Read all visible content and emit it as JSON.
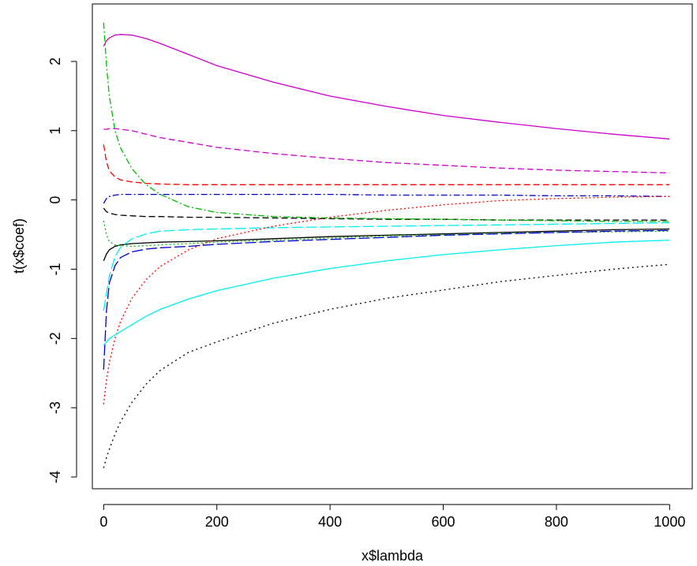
{
  "chart_data": {
    "type": "line",
    "xlabel": "x$lambda",
    "ylabel": "t(x$coef)",
    "xlim": [
      -20,
      1040
    ],
    "ylim": [
      -4.17,
      2.83
    ],
    "xticks": [
      0,
      200,
      400,
      600,
      800,
      1000
    ],
    "yticks": [
      -4,
      -3,
      -2,
      -1,
      0,
      1,
      2
    ],
    "xtick_labels": [
      "0",
      "200",
      "400",
      "600",
      "800",
      "1000"
    ],
    "ytick_labels": [
      "-4",
      "-3",
      "-2",
      "-1",
      "0",
      "1",
      "2"
    ],
    "grid": false,
    "legend": "none",
    "x": [
      0,
      5,
      10,
      20,
      30,
      50,
      75,
      100,
      150,
      200,
      300,
      400,
      500,
      600,
      700,
      800,
      900,
      1000
    ],
    "series": [
      {
        "color": "#000000",
        "dash": "none",
        "values": [
          -0.88,
          -0.78,
          -0.72,
          -0.67,
          -0.65,
          -0.63,
          -0.62,
          -0.61,
          -0.6,
          -0.59,
          -0.56,
          -0.53,
          -0.51,
          -0.49,
          -0.47,
          -0.45,
          -0.43,
          -0.42
        ]
      },
      {
        "color": "#ff0000",
        "dash": "8,4",
        "values": [
          0.8,
          0.55,
          0.42,
          0.33,
          0.29,
          0.26,
          0.24,
          0.23,
          0.22,
          0.22,
          0.22,
          0.22,
          0.22,
          0.22,
          0.22,
          0.22,
          0.22,
          0.22
        ]
      },
      {
        "color": "#00bb00",
        "dash": "2,3",
        "values": [
          -0.3,
          -0.5,
          -0.6,
          -0.65,
          -0.66,
          -0.67,
          -0.66,
          -0.65,
          -0.63,
          -0.61,
          -0.58,
          -0.55,
          -0.52,
          -0.5,
          -0.48,
          -0.47,
          -0.46,
          -0.45
        ]
      },
      {
        "color": "#0000cc",
        "dash": "8,3,2,3",
        "values": [
          -0.05,
          0.02,
          0.05,
          0.07,
          0.08,
          0.08,
          0.08,
          0.08,
          0.08,
          0.08,
          0.08,
          0.08,
          0.07,
          0.07,
          0.07,
          0.06,
          0.06,
          0.05
        ]
      },
      {
        "color": "#00eeee",
        "dash": "14,4",
        "values": [
          -1.6,
          -1.35,
          -1.1,
          -0.82,
          -0.68,
          -0.56,
          -0.49,
          -0.45,
          -0.43,
          -0.42,
          -0.4,
          -0.39,
          -0.38,
          -0.37,
          -0.36,
          -0.35,
          -0.34,
          -0.33
        ]
      },
      {
        "color": "#cc00cc",
        "dash": "none",
        "values": [
          2.22,
          2.3,
          2.34,
          2.38,
          2.39,
          2.38,
          2.33,
          2.26,
          2.1,
          1.94,
          1.7,
          1.5,
          1.35,
          1.22,
          1.12,
          1.03,
          0.95,
          0.88
        ]
      },
      {
        "color": "#000000",
        "dash": "2,4",
        "values": [
          -3.87,
          -3.72,
          -3.6,
          -3.38,
          -3.2,
          -2.92,
          -2.66,
          -2.46,
          -2.2,
          -2.05,
          -1.78,
          -1.58,
          -1.42,
          -1.3,
          -1.18,
          -1.09,
          -1.0,
          -0.93
        ]
      },
      {
        "color": "#000000",
        "dash": "8,4",
        "values": [
          -0.12,
          -0.17,
          -0.19,
          -0.21,
          -0.22,
          -0.23,
          -0.24,
          -0.24,
          -0.25,
          -0.25,
          -0.26,
          -0.27,
          -0.28,
          -0.28,
          -0.29,
          -0.29,
          -0.29,
          -0.29
        ]
      },
      {
        "color": "#ff0000",
        "dash": "2,3",
        "values": [
          -2.95,
          -2.6,
          -2.35,
          -2.0,
          -1.75,
          -1.42,
          -1.15,
          -0.96,
          -0.72,
          -0.56,
          -0.38,
          -0.25,
          -0.15,
          -0.07,
          -0.01,
          0.02,
          0.04,
          0.05
        ]
      },
      {
        "color": "#00bb00",
        "dash": "8,3,2,3",
        "values": [
          2.56,
          1.95,
          1.5,
          1.0,
          0.75,
          0.45,
          0.22,
          0.08,
          -0.1,
          -0.18,
          -0.24,
          -0.26,
          -0.27,
          -0.28,
          -0.29,
          -0.3,
          -0.31,
          -0.31
        ]
      },
      {
        "color": "#0000cc",
        "dash": "14,4",
        "values": [
          -2.45,
          -1.6,
          -1.2,
          -0.95,
          -0.83,
          -0.75,
          -0.71,
          -0.69,
          -0.67,
          -0.64,
          -0.6,
          -0.57,
          -0.54,
          -0.51,
          -0.49,
          -0.47,
          -0.45,
          -0.44
        ]
      },
      {
        "color": "#00eeee",
        "dash": "none",
        "values": [
          -2.1,
          -2.05,
          -2.0,
          -1.95,
          -1.9,
          -1.8,
          -1.68,
          -1.58,
          -1.43,
          -1.31,
          -1.13,
          -0.99,
          -0.88,
          -0.79,
          -0.72,
          -0.66,
          -0.61,
          -0.58
        ]
      },
      {
        "color": "#cc00cc",
        "dash": "8,4",
        "values": [
          1.02,
          1.02,
          1.03,
          1.03,
          1.02,
          1.0,
          0.95,
          0.9,
          0.83,
          0.76,
          0.67,
          0.6,
          0.54,
          0.5,
          0.46,
          0.43,
          0.41,
          0.39
        ]
      }
    ]
  }
}
